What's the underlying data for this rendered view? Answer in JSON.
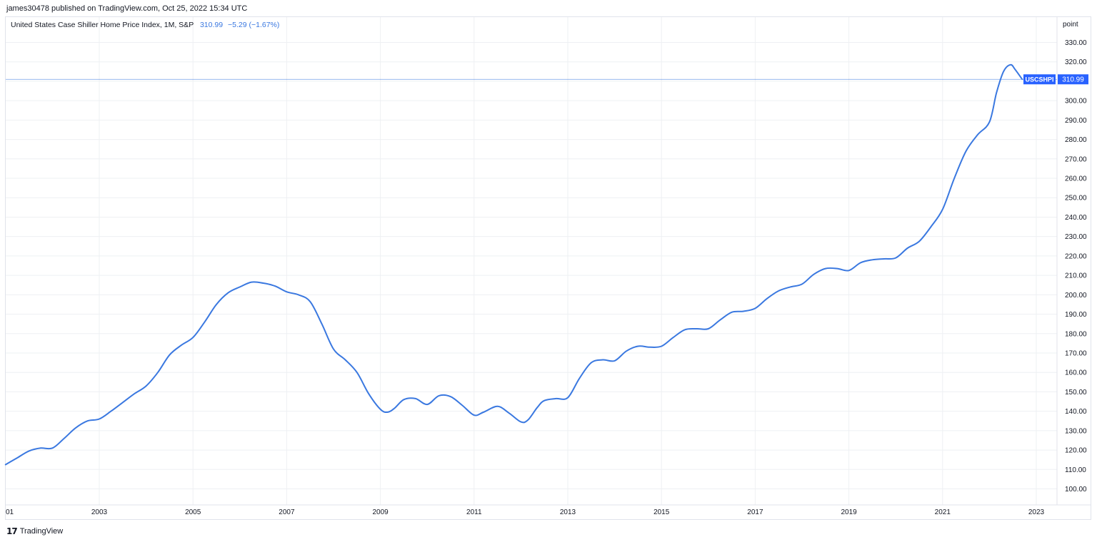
{
  "header": {
    "published": "james30478 published on TradingView.com, Oct 25, 2022 15:34 UTC"
  },
  "legend": {
    "title": "United States Case Shiller Home Price Index, 1M, S&P",
    "value": "310.99",
    "change": "−5.29 (−1.67%)"
  },
  "axis_unit": "point",
  "footer": {
    "brand": "TradingView",
    "logo": "𝟭𝟳"
  },
  "colors": {
    "line": "#3a78e0",
    "grid": "#eef0f3",
    "label_bg": "#2962ff"
  },
  "chart_data": {
    "type": "line",
    "title": "United States Case Shiller Home Price Index, 1M, S&P",
    "ylabel": "point",
    "ylim": [
      95,
      332
    ],
    "xlim": [
      2001.0,
      2023.5
    ],
    "x_ticks": [
      "01",
      "2003",
      "2005",
      "2007",
      "2009",
      "2011",
      "2013",
      "2015",
      "2017",
      "2019",
      "2021",
      "2023"
    ],
    "x_tick_values": [
      2001,
      2003,
      2005,
      2007,
      2009,
      2011,
      2013,
      2015,
      2017,
      2019,
      2021,
      2023
    ],
    "y_ticks": [
      "100.00",
      "110.00",
      "120.00",
      "130.00",
      "140.00",
      "150.00",
      "160.00",
      "170.00",
      "180.00",
      "190.00",
      "200.00",
      "210.00",
      "220.00",
      "230.00",
      "240.00",
      "250.00",
      "260.00",
      "270.00",
      "280.00",
      "290.00",
      "300.00",
      "310.00",
      "320.00",
      "330.00"
    ],
    "y_tick_values": [
      100,
      110,
      120,
      130,
      140,
      150,
      160,
      170,
      180,
      190,
      200,
      210,
      220,
      230,
      240,
      250,
      260,
      270,
      280,
      290,
      300,
      310,
      320,
      330
    ],
    "last_value_label": {
      "symbol": "USCSHPI",
      "value": "310.99",
      "y": 310.99
    },
    "series": [
      {
        "name": "USCSHPI",
        "x": [
          2001.0,
          2001.25,
          2001.5,
          2001.75,
          2002.0,
          2002.25,
          2002.5,
          2002.75,
          2003.0,
          2003.25,
          2003.5,
          2003.75,
          2004.0,
          2004.25,
          2004.5,
          2004.75,
          2005.0,
          2005.25,
          2005.5,
          2005.75,
          2006.0,
          2006.25,
          2006.5,
          2006.75,
          2007.0,
          2007.25,
          2007.5,
          2007.75,
          2008.0,
          2008.25,
          2008.5,
          2008.75,
          2009.0,
          2009.15,
          2009.3,
          2009.5,
          2009.75,
          2010.0,
          2010.25,
          2010.5,
          2010.75,
          2011.0,
          2011.2,
          2011.5,
          2011.75,
          2012.0,
          2012.15,
          2012.35,
          2012.5,
          2012.75,
          2013.0,
          2013.25,
          2013.5,
          2013.75,
          2014.0,
          2014.25,
          2014.5,
          2014.75,
          2015.0,
          2015.25,
          2015.5,
          2015.75,
          2016.0,
          2016.25,
          2016.5,
          2016.75,
          2017.0,
          2017.25,
          2017.5,
          2017.75,
          2018.0,
          2018.25,
          2018.5,
          2018.75,
          2019.0,
          2019.25,
          2019.5,
          2019.75,
          2020.0,
          2020.25,
          2020.5,
          2020.75,
          2021.0,
          2021.25,
          2021.5,
          2021.75,
          2022.0,
          2022.15,
          2022.3,
          2022.45,
          2022.55,
          2022.7
        ],
        "values": [
          112.5,
          116.0,
          119.5,
          121.0,
          121.0,
          126.0,
          131.5,
          135.0,
          136.0,
          140.0,
          144.5,
          149.0,
          153.0,
          160.0,
          169.0,
          174.0,
          178.0,
          186.0,
          195.0,
          201.0,
          204.0,
          206.5,
          206.0,
          204.5,
          201.5,
          200.0,
          196.5,
          185.0,
          172.0,
          166.5,
          160.0,
          149.0,
          141.0,
          139.5,
          141.5,
          146.0,
          146.5,
          143.5,
          148.0,
          147.5,
          143.0,
          138.0,
          139.5,
          142.5,
          139.0,
          134.5,
          135.5,
          142.0,
          145.5,
          146.5,
          147.0,
          157.0,
          165.0,
          166.5,
          166.0,
          171.0,
          173.5,
          173.0,
          173.5,
          178.0,
          182.0,
          182.5,
          182.5,
          187.0,
          191.0,
          191.5,
          193.0,
          198.0,
          202.0,
          204.0,
          205.5,
          210.5,
          213.5,
          213.5,
          212.5,
          216.5,
          218.0,
          218.5,
          219.0,
          224.0,
          227.5,
          235.0,
          244.0,
          260.0,
          274.0,
          282.5,
          289.0,
          304.0,
          315.0,
          318.5,
          316.0,
          310.99
        ]
      }
    ]
  }
}
